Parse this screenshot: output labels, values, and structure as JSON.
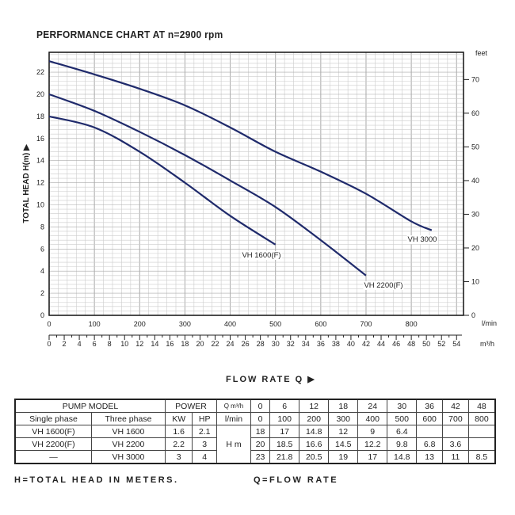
{
  "chart_data": {
    "type": "line",
    "title": "PERFORMANCE CHART AT n=2900 rpm",
    "ylabel": "TOTAL HEAD H(m) ▶",
    "xlabel": "FLOW RATE Q ▶",
    "x_unit_primary": "l/min",
    "x_unit_secondary": "m³/h",
    "y2_unit": "feet",
    "xlim": [
      0,
      915
    ],
    "ylim": [
      0,
      23.8
    ],
    "x_ticks": [
      0,
      100,
      200,
      300,
      400,
      500,
      600,
      700,
      800
    ],
    "x2_ticks": [
      0,
      2,
      4,
      6,
      8,
      10,
      12,
      14,
      16,
      18,
      20,
      22,
      24,
      26,
      28,
      30,
      32,
      34,
      36,
      38,
      40,
      42,
      44,
      46,
      48,
      50,
      52,
      54
    ],
    "y_ticks": [
      0,
      2,
      4,
      6,
      8,
      10,
      12,
      14,
      16,
      18,
      20,
      22
    ],
    "y2_ticks": [
      0,
      10,
      20,
      30,
      40,
      50,
      60,
      70
    ],
    "grid": true,
    "series": [
      {
        "name": "VH 1600(F)",
        "x": [
          0,
          100,
          200,
          300,
          400,
          500
        ],
        "y": [
          18,
          17,
          14.8,
          12,
          9,
          6.4
        ]
      },
      {
        "name": "VH 2200(F)",
        "x": [
          0,
          100,
          200,
          300,
          400,
          500,
          600,
          700
        ],
        "y": [
          20,
          18.5,
          16.6,
          14.5,
          12.2,
          9.8,
          6.8,
          3.6
        ]
      },
      {
        "name": "VH 3000",
        "x": [
          0,
          100,
          200,
          300,
          400,
          500,
          600,
          700,
          800,
          845
        ],
        "y": [
          23,
          21.8,
          20.5,
          19,
          17,
          14.8,
          13,
          11,
          8.5,
          7.7
        ]
      }
    ],
    "color": "#1f2a6b"
  },
  "table": {
    "header1": [
      "PUMP MODEL",
      "POWER",
      "Q m³/h",
      "0",
      "6",
      "12",
      "18",
      "24",
      "30",
      "36",
      "42",
      "48"
    ],
    "header2": [
      "Single phase",
      "Three phase",
      "KW",
      "HP",
      "l/min",
      "0",
      "100",
      "200",
      "300",
      "400",
      "500",
      "600",
      "700",
      "800"
    ],
    "hm_label": "H m",
    "rows": [
      [
        "VH 1600(F)",
        "VH 1600",
        "1.6",
        "2.1",
        "18",
        "17",
        "14.8",
        "12",
        "9",
        "6.4",
        "",
        "",
        ""
      ],
      [
        "VH 2200(F)",
        "VH 2200",
        "2.2",
        "3",
        "20",
        "18.5",
        "16.6",
        "14.5",
        "12.2",
        "9.8",
        "6.8",
        "3.6",
        ""
      ],
      [
        "—",
        "VH 3000",
        "3",
        "4",
        "23",
        "21.8",
        "20.5",
        "19",
        "17",
        "14.8",
        "13",
        "11",
        "8.5"
      ]
    ]
  },
  "footer": {
    "left": "H=TOTAL HEAD IN METERS.",
    "right": "Q=FLOW RATE"
  }
}
